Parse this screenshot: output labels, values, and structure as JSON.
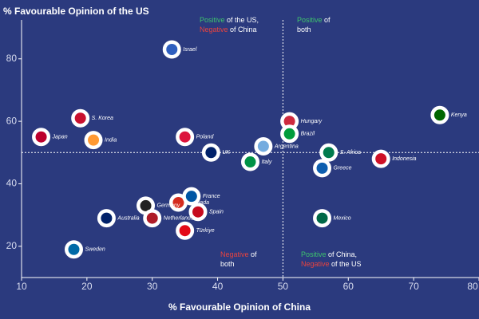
{
  "chart_data": {
    "type": "scatter",
    "y_label": "% Favourable Opinion of the US",
    "x_label": "% Favourable Opinion of China",
    "xlim": [
      10,
      80
    ],
    "xticks": [
      10,
      20,
      30,
      40,
      50,
      60,
      70,
      80
    ],
    "ylim": [
      10,
      95
    ],
    "yticks": [
      20,
      40,
      60,
      80
    ],
    "reference_x": 50,
    "reference_y": 50,
    "labels": [
      "Israel",
      "S. Korea",
      "Japan",
      "India",
      "Poland",
      "UK",
      "Argentina",
      "Italy",
      "Hungary",
      "Brazil",
      "S. Africa",
      "Greece",
      "Indonesia",
      "Kenya",
      "Mexico",
      "Canada",
      "France",
      "Germany",
      "Netherlands",
      "Spain",
      "Türkiye",
      "Australia",
      "Sweden"
    ],
    "x": [
      33,
      19,
      13,
      21,
      35,
      39,
      47,
      45,
      51,
      51,
      57,
      56,
      65,
      74,
      56,
      34,
      36,
      29,
      30,
      37,
      35,
      23,
      18
    ],
    "values": [
      83,
      61,
      55,
      54,
      55,
      50,
      52,
      47,
      60,
      56,
      50,
      45,
      48,
      62,
      29,
      34,
      36,
      33,
      29,
      31,
      25,
      29,
      19
    ],
    "colors": [
      "#2f5fbf",
      "#c8102e",
      "#bc002d",
      "#ff9933",
      "#dc143c",
      "#012169",
      "#74acdf",
      "#009246",
      "#cd2a3e",
      "#009c3b",
      "#007a4d",
      "#0d5eaf",
      "#ce1126",
      "#006600",
      "#006847",
      "#d52b1e",
      "#0055a4",
      "#222222",
      "#ae1c28",
      "#c60b1e",
      "#e30a17",
      "#012169",
      "#006aa7"
    ],
    "annotations": [
      [
        [
          {
            "text": "Positive",
            "color": "#3ec46d"
          },
          {
            "text": " of the US,",
            "color": "#ffffff"
          }
        ],
        [
          {
            "text": "Negative",
            "color": "#e8433f"
          },
          {
            "text": " of China",
            "color": "#ffffff"
          }
        ]
      ],
      [
        [
          {
            "text": "Positive",
            "color": "#3ec46d"
          },
          {
            "text": " of",
            "color": "#ffffff"
          }
        ],
        [
          {
            "text": "both",
            "color": "#ffffff"
          }
        ]
      ],
      [
        [
          {
            "text": "Negative",
            "color": "#e8433f"
          },
          {
            "text": " of",
            "color": "#ffffff"
          }
        ],
        [
          {
            "text": "both",
            "color": "#ffffff"
          }
        ]
      ],
      [
        [
          {
            "text": "Positive",
            "color": "#3ec46d"
          },
          {
            "text": " of China,",
            "color": "#ffffff"
          }
        ],
        [
          {
            "text": "Negative",
            "color": "#e8433f"
          },
          {
            "text": " of the US",
            "color": "#ffffff"
          }
        ]
      ]
    ]
  }
}
